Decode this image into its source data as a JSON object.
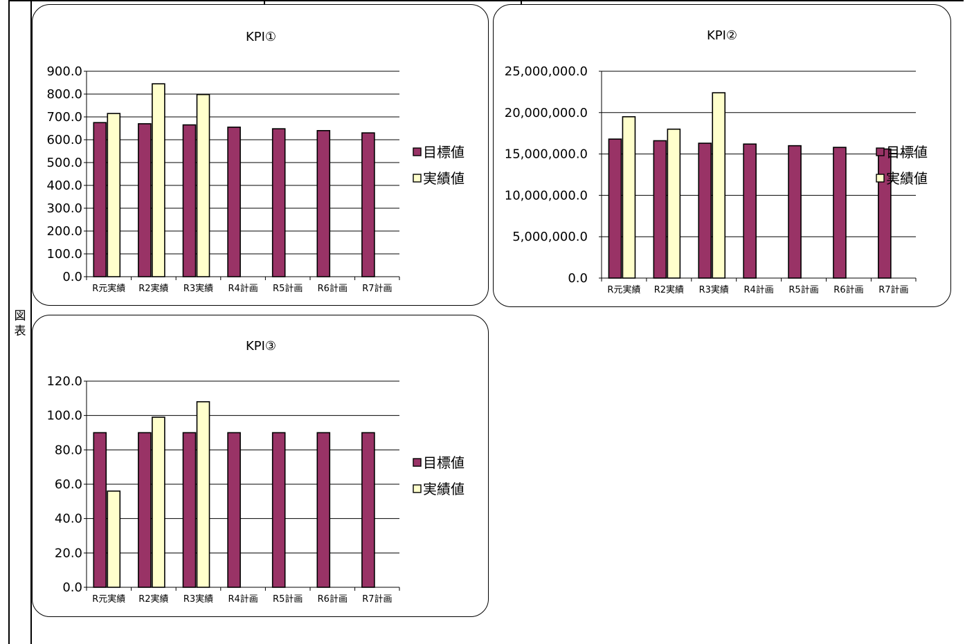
{
  "side_label": "図表",
  "chart_data": [
    {
      "type": "bar",
      "title": "KPI①",
      "categories": [
        "R元実績",
        "R2実績",
        "R3実績",
        "R4計画",
        "R5計画",
        "R6計画",
        "R7計画"
      ],
      "series": [
        {
          "name": "目標値",
          "color": "#993366",
          "values": [
            675,
            670,
            665,
            655,
            648,
            640,
            630
          ]
        },
        {
          "name": "実績値",
          "color": "#ffffcc",
          "values": [
            715,
            845,
            798,
            null,
            null,
            null,
            null
          ]
        }
      ],
      "ylim": [
        0,
        900
      ],
      "yticks": [
        "0.0",
        "100.0",
        "200.0",
        "300.0",
        "400.0",
        "500.0",
        "600.0",
        "700.0",
        "800.0",
        "900.0"
      ],
      "legend": "right",
      "grid": true
    },
    {
      "type": "bar",
      "title": "KPI②",
      "categories": [
        "R元実績",
        "R2実績",
        "R3実績",
        "R4計画",
        "R5計画",
        "R6計画",
        "R7計画"
      ],
      "series": [
        {
          "name": "目標値",
          "color": "#993366",
          "values": [
            16800000,
            16600000,
            16300000,
            16200000,
            16000000,
            15800000,
            15600000
          ]
        },
        {
          "name": "実績値",
          "color": "#ffffcc",
          "values": [
            19500000,
            18000000,
            22400000,
            null,
            null,
            null,
            null
          ]
        }
      ],
      "ylim": [
        0,
        25000000
      ],
      "yticks": [
        "0.0",
        "5,000,000.0",
        "10,000,000.0",
        "15,000,000.0",
        "20,000,000.0",
        "25,000,000.0"
      ],
      "legend": "right",
      "grid": true
    },
    {
      "type": "bar",
      "title": "KPI③",
      "categories": [
        "R元実績",
        "R2実績",
        "R3実績",
        "R4計画",
        "R5計画",
        "R6計画",
        "R7計画"
      ],
      "series": [
        {
          "name": "目標値",
          "color": "#993366",
          "values": [
            90,
            90,
            90,
            90,
            90,
            90,
            90
          ]
        },
        {
          "name": "実績値",
          "color": "#ffffcc",
          "values": [
            56,
            99,
            108,
            null,
            null,
            null,
            null
          ]
        }
      ],
      "ylim": [
        0,
        120
      ],
      "yticks": [
        "0.0",
        "20.0",
        "40.0",
        "60.0",
        "80.0",
        "100.0",
        "120.0"
      ],
      "legend": "right",
      "grid": true
    }
  ]
}
